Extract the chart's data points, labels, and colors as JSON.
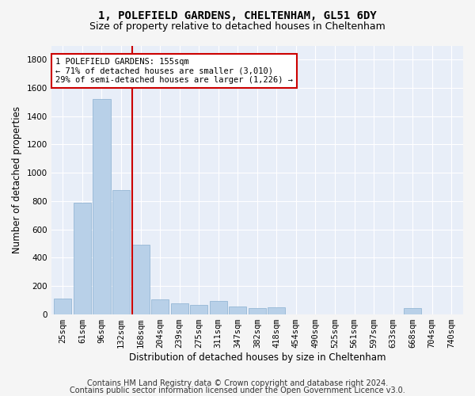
{
  "title1": "1, POLEFIELD GARDENS, CHELTENHAM, GL51 6DY",
  "title2": "Size of property relative to detached houses in Cheltenham",
  "xlabel": "Distribution of detached houses by size in Cheltenham",
  "ylabel": "Number of detached properties",
  "categories": [
    "25sqm",
    "61sqm",
    "96sqm",
    "132sqm",
    "168sqm",
    "204sqm",
    "239sqm",
    "275sqm",
    "311sqm",
    "347sqm",
    "382sqm",
    "418sqm",
    "454sqm",
    "490sqm",
    "525sqm",
    "561sqm",
    "597sqm",
    "633sqm",
    "668sqm",
    "704sqm",
    "740sqm"
  ],
  "values": [
    110,
    790,
    1520,
    880,
    490,
    105,
    75,
    65,
    95,
    55,
    40,
    50,
    0,
    0,
    0,
    0,
    0,
    0,
    40,
    0,
    0
  ],
  "bar_color": "#b8d0e8",
  "bar_edge_color": "#8ab0d0",
  "vline_x": 3.55,
  "vline_color": "#cc0000",
  "annotation_text": "1 POLEFIELD GARDENS: 155sqm\n← 71% of detached houses are smaller (3,010)\n29% of semi-detached houses are larger (1,226) →",
  "annotation_box_color": "#cc0000",
  "ylim": [
    0,
    1900
  ],
  "yticks": [
    0,
    200,
    400,
    600,
    800,
    1000,
    1200,
    1400,
    1600,
    1800
  ],
  "footer1": "Contains HM Land Registry data © Crown copyright and database right 2024.",
  "footer2": "Contains public sector information licensed under the Open Government Licence v3.0.",
  "plot_bg_color": "#e8eef8",
  "fig_bg_color": "#f5f5f5",
  "grid_color": "#ffffff",
  "title_fontsize": 10,
  "subtitle_fontsize": 9,
  "axis_label_fontsize": 8.5,
  "tick_fontsize": 7.5,
  "footer_fontsize": 7,
  "ann_fontsize": 7.5
}
